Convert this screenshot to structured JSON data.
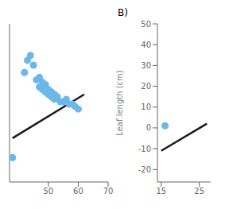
{
  "chart_data": [
    {
      "type": "scatter",
      "xlim": [
        37,
        70
      ],
      "ylim": [
        10,
        75
      ],
      "xticks": [
        50,
        60,
        70
      ],
      "tick_labels": "x",
      "series": [
        {
          "type": "scatter",
          "x": [
            38,
            42,
            43,
            44,
            45,
            46,
            47,
            47,
            48,
            48,
            49,
            49,
            50,
            50,
            51,
            51,
            52,
            52,
            53,
            54,
            55,
            56,
            57,
            58,
            59,
            60
          ],
          "values": [
            20,
            55,
            60,
            62,
            58,
            52,
            49,
            53,
            48,
            51,
            50,
            47,
            46,
            48,
            45,
            47,
            44,
            46,
            45,
            43,
            43,
            44,
            42,
            42,
            41,
            40
          ],
          "color": "#6bb8e8"
        },
        {
          "type": "line",
          "x": [
            38,
            62
          ],
          "values": [
            28,
            46
          ],
          "color": "#1a1a1a"
        }
      ]
    },
    {
      "type": "scatter",
      "title": "B)",
      "ylabel": "Leaf length (cm)",
      "xlim": [
        14,
        28
      ],
      "ylim": [
        -26,
        50
      ],
      "xticks": [
        15,
        25
      ],
      "yticks": [
        -20,
        -10,
        0,
        10,
        20,
        30,
        40,
        50
      ],
      "series": [
        {
          "type": "scatter",
          "x": [
            16
          ],
          "values": [
            1
          ],
          "color": "#6bb8e8"
        },
        {
          "type": "line",
          "x": [
            15,
            27
          ],
          "values": [
            -11,
            2
          ],
          "color": "#1a1a1a"
        }
      ]
    }
  ]
}
